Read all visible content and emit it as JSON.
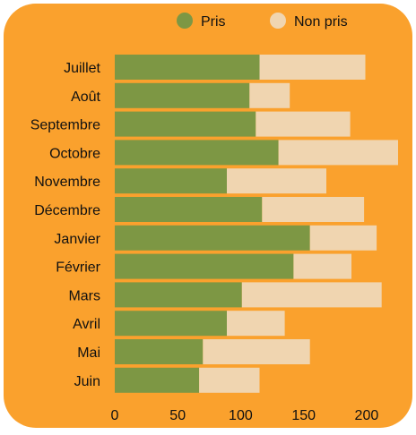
{
  "chart_data": {
    "type": "bar",
    "orientation": "horizontal",
    "stacked": true,
    "categories": [
      "Juillet",
      "Août",
      "Septembre",
      "Octobre",
      "Novembre",
      "Décembre",
      "Janvier",
      "Février",
      "Mars",
      "Avril",
      "Mai",
      "Juin"
    ],
    "series": [
      {
        "name": "Pris",
        "color": "#7D9744",
        "values": [
          115,
          107,
          112,
          130,
          89,
          117,
          155,
          142,
          101,
          89,
          70,
          67
        ]
      },
      {
        "name": "Non pris",
        "color": "#F0D5B0",
        "values": [
          84,
          32,
          75,
          95,
          79,
          81,
          53,
          46,
          111,
          46,
          85,
          48
        ]
      }
    ],
    "xlim": [
      0,
      225
    ],
    "xticks": [
      0,
      50,
      100,
      150,
      200
    ],
    "grid": false,
    "legend_position": "top-right",
    "background_color": "#FAA12D"
  }
}
